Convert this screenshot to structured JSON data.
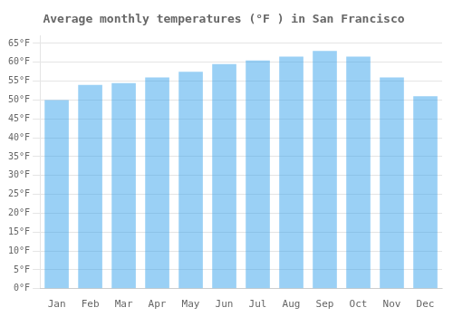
{
  "chart_data": {
    "type": "bar",
    "title": "Average monthly temperatures (°F ) in San Francisco",
    "categories": [
      "Jan",
      "Feb",
      "Mar",
      "Apr",
      "May",
      "Jun",
      "Jul",
      "Aug",
      "Sep",
      "Oct",
      "Nov",
      "Dec"
    ],
    "values": [
      50,
      54,
      54.5,
      56,
      57.5,
      59.5,
      60.5,
      61.5,
      63,
      61.5,
      56,
      51
    ],
    "ylim": [
      0,
      67
    ],
    "yticks": [
      {
        "value": 0,
        "label": "0°F"
      },
      {
        "value": 5,
        "label": "5°F"
      },
      {
        "value": 10,
        "label": "10°F"
      },
      {
        "value": 15,
        "label": "15°F"
      },
      {
        "value": 20,
        "label": "20°F"
      },
      {
        "value": 25,
        "label": "25°F"
      },
      {
        "value": 30,
        "label": "30°F"
      },
      {
        "value": 35,
        "label": "35°F"
      },
      {
        "value": 40,
        "label": "40°F"
      },
      {
        "value": 45,
        "label": "45°F"
      },
      {
        "value": 50,
        "label": "50°F"
      },
      {
        "value": 55,
        "label": "55°F"
      },
      {
        "value": 60,
        "label": "60°F"
      },
      {
        "value": 65,
        "label": "65°F"
      }
    ],
    "grid": true
  }
}
